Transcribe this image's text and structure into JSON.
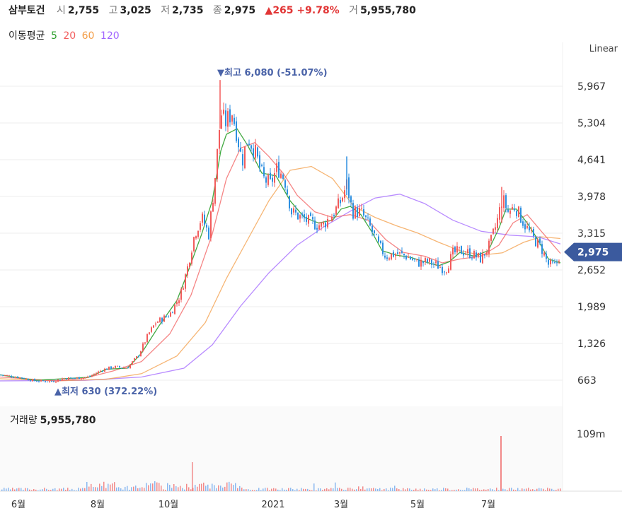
{
  "header": {
    "stock_name": "삼부토건",
    "open_label": "시",
    "open": "2,755",
    "high_label": "고",
    "high": "3,025",
    "low_label": "저",
    "low": "2,735",
    "close_label": "종",
    "close": "2,975",
    "change": "▲265 +9.78%",
    "volume_label": "거",
    "volume": "5,955,780"
  },
  "ma_legend": {
    "title": "이동평균",
    "periods": [
      "5",
      "20",
      "60",
      "120"
    ],
    "colors": [
      "#2ca02c",
      "#f25c5c",
      "#f39c45",
      "#a064ff"
    ]
  },
  "scale_mode": "Linear",
  "colors": {
    "up": "#f25c5c",
    "down": "#2d8fe0",
    "price_badge": "#3b5a9e"
  },
  "chart_data": {
    "type": "candlestick",
    "y_ticks": [
      "5,967",
      "5,304",
      "4,641",
      "3,978",
      "3,315",
      "2,652",
      "1,989",
      "1,326",
      "663"
    ],
    "y_tick_values": [
      5967,
      5304,
      4641,
      3978,
      3315,
      2652,
      1989,
      1326,
      663
    ],
    "x_ticks": [
      "6월",
      "8월",
      "10월",
      "2021",
      "3월",
      "5월",
      "7월"
    ],
    "current_price": "2,975",
    "high_annotation": "▼최고 6,080 (-51.07%)",
    "low_annotation": "▲최저 630 (372.22%)",
    "close_path": [
      [
        0,
        760
      ],
      [
        25,
        720
      ],
      [
        50,
        650
      ],
      [
        75,
        640
      ],
      [
        90,
        700
      ],
      [
        105,
        700
      ],
      [
        125,
        720
      ],
      [
        145,
        850
      ],
      [
        160,
        900
      ],
      [
        180,
        890
      ],
      [
        195,
        1100
      ],
      [
        210,
        1500
      ],
      [
        220,
        1700
      ],
      [
        240,
        1850
      ],
      [
        255,
        2200
      ],
      [
        265,
        2700
      ],
      [
        275,
        3300
      ],
      [
        285,
        3600
      ],
      [
        295,
        3300
      ],
      [
        303,
        4200
      ],
      [
        308,
        4900
      ],
      [
        312,
        5500
      ],
      [
        318,
        5300
      ],
      [
        328,
        5500
      ],
      [
        335,
        5100
      ],
      [
        342,
        4600
      ],
      [
        350,
        5050
      ],
      [
        360,
        4800
      ],
      [
        372,
        4300
      ],
      [
        382,
        4200
      ],
      [
        392,
        4500
      ],
      [
        402,
        4300
      ],
      [
        412,
        3700
      ],
      [
        425,
        3600
      ],
      [
        440,
        3500
      ],
      [
        455,
        3450
      ],
      [
        470,
        3650
      ],
      [
        482,
        3900
      ],
      [
        490,
        4200
      ],
      [
        498,
        3700
      ],
      [
        510,
        3700
      ],
      [
        522,
        3450
      ],
      [
        535,
        3100
      ],
      [
        545,
        2900
      ],
      [
        560,
        2950
      ],
      [
        575,
        2900
      ],
      [
        590,
        2780
      ],
      [
        605,
        2800
      ],
      [
        620,
        2720
      ],
      [
        630,
        2660
      ],
      [
        640,
        2950
      ],
      [
        650,
        3000
      ],
      [
        665,
        2950
      ],
      [
        680,
        2850
      ],
      [
        692,
        3100
      ],
      [
        702,
        3500
      ],
      [
        710,
        3950
      ],
      [
        718,
        3700
      ],
      [
        728,
        3800
      ],
      [
        740,
        3500
      ],
      [
        752,
        3250
      ],
      [
        765,
        3050
      ],
      [
        775,
        2750
      ],
      [
        785,
        2720
      ],
      [
        792,
        2975
      ]
    ],
    "ma_lines": {
      "5": [
        [
          0,
          760
        ],
        [
          50,
          660
        ],
        [
          90,
          690
        ],
        [
          125,
          715
        ],
        [
          150,
          860
        ],
        [
          180,
          880
        ],
        [
          200,
          1150
        ],
        [
          225,
          1650
        ],
        [
          250,
          2100
        ],
        [
          268,
          2700
        ],
        [
          285,
          3300
        ],
        [
          300,
          3900
        ],
        [
          312,
          4800
        ],
        [
          320,
          5100
        ],
        [
          335,
          5200
        ],
        [
          350,
          4900
        ],
        [
          370,
          4400
        ],
        [
          390,
          4350
        ],
        [
          410,
          3900
        ],
        [
          430,
          3600
        ],
        [
          450,
          3500
        ],
        [
          470,
          3550
        ],
        [
          482,
          3750
        ],
        [
          495,
          3800
        ],
        [
          510,
          3650
        ],
        [
          525,
          3350
        ],
        [
          540,
          3000
        ],
        [
          560,
          2920
        ],
        [
          580,
          2880
        ],
        [
          600,
          2800
        ],
        [
          620,
          2730
        ],
        [
          635,
          2800
        ],
        [
          650,
          2970
        ],
        [
          670,
          2900
        ],
        [
          690,
          3000
        ],
        [
          705,
          3400
        ],
        [
          715,
          3750
        ],
        [
          730,
          3750
        ],
        [
          745,
          3500
        ],
        [
          760,
          3200
        ],
        [
          775,
          2850
        ],
        [
          792,
          2780
        ]
      ],
      "20": [
        [
          0,
          720
        ],
        [
          80,
          650
        ],
        [
          120,
          700
        ],
        [
          160,
          830
        ],
        [
          200,
          1000
        ],
        [
          240,
          1500
        ],
        [
          270,
          2200
        ],
        [
          300,
          3300
        ],
        [
          320,
          4300
        ],
        [
          340,
          4850
        ],
        [
          360,
          4950
        ],
        [
          380,
          4700
        ],
        [
          400,
          4400
        ],
        [
          420,
          4000
        ],
        [
          445,
          3700
        ],
        [
          470,
          3600
        ],
        [
          495,
          3650
        ],
        [
          520,
          3550
        ],
        [
          545,
          3200
        ],
        [
          570,
          2970
        ],
        [
          600,
          2900
        ],
        [
          625,
          2780
        ],
        [
          650,
          2850
        ],
        [
          680,
          2900
        ],
        [
          705,
          3100
        ],
        [
          725,
          3500
        ],
        [
          745,
          3650
        ],
        [
          765,
          3350
        ],
        [
          792,
          2950
        ]
      ],
      "60": [
        [
          0,
          690
        ],
        [
          80,
          650
        ],
        [
          150,
          680
        ],
        [
          200,
          780
        ],
        [
          250,
          1100
        ],
        [
          290,
          1700
        ],
        [
          320,
          2500
        ],
        [
          350,
          3200
        ],
        [
          380,
          3900
        ],
        [
          410,
          4450
        ],
        [
          440,
          4520
        ],
        [
          470,
          4300
        ],
        [
          500,
          3800
        ],
        [
          530,
          3600
        ],
        [
          560,
          3450
        ],
        [
          590,
          3320
        ],
        [
          620,
          3150
        ],
        [
          650,
          3000
        ],
        [
          680,
          2920
        ],
        [
          710,
          2960
        ],
        [
          740,
          3150
        ],
        [
          765,
          3250
        ],
        [
          792,
          3220
        ]
      ],
      "120": [
        [
          0,
          650
        ],
        [
          120,
          660
        ],
        [
          200,
          720
        ],
        [
          260,
          880
        ],
        [
          300,
          1300
        ],
        [
          340,
          2000
        ],
        [
          380,
          2600
        ],
        [
          420,
          3100
        ],
        [
          460,
          3450
        ],
        [
          500,
          3750
        ],
        [
          530,
          3950
        ],
        [
          565,
          4020
        ],
        [
          600,
          3850
        ],
        [
          640,
          3550
        ],
        [
          680,
          3350
        ],
        [
          720,
          3280
        ],
        [
          760,
          3250
        ],
        [
          792,
          3120
        ]
      ]
    },
    "volume_max_label": "109m"
  },
  "volume": {
    "title": "거래량",
    "value": "5,955,780"
  }
}
